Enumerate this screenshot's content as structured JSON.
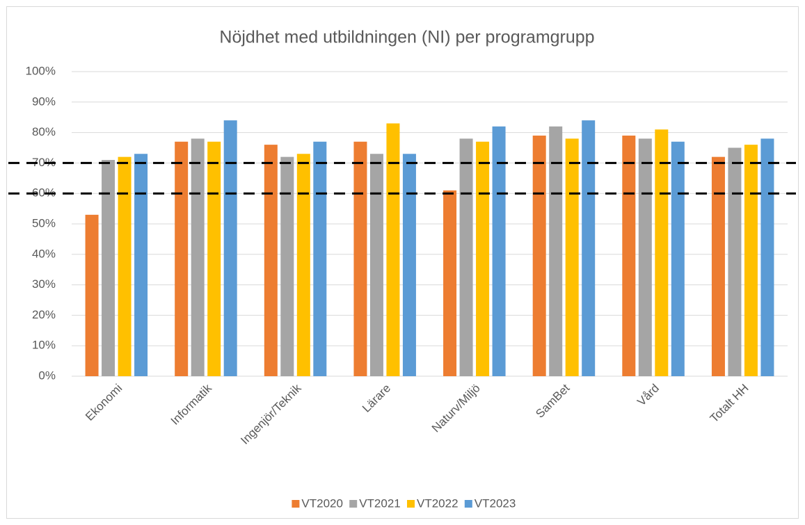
{
  "chart_data": {
    "type": "bar",
    "title": "Nöjdhet med utbildningen (NI) per programgrupp",
    "categories": [
      "Ekonomi",
      "Informatik",
      "Ingenjör/Teknik",
      "Lärare",
      "Naturv/Miljö",
      "SamBet",
      "Vård",
      "Totalt HH"
    ],
    "series": [
      {
        "name": "VT2020",
        "color": "#ed7d31",
        "values": [
          53,
          77,
          76,
          77,
          61,
          79,
          79,
          72
        ]
      },
      {
        "name": "VT2021",
        "color": "#a5a5a5",
        "values": [
          71,
          78,
          72,
          73,
          78,
          82,
          78,
          75
        ]
      },
      {
        "name": "VT2022",
        "color": "#ffc000",
        "values": [
          72,
          77,
          73,
          83,
          77,
          78,
          81,
          76
        ]
      },
      {
        "name": "VT2023",
        "color": "#5b9bd5",
        "values": [
          73,
          84,
          77,
          73,
          82,
          84,
          77,
          78
        ]
      }
    ],
    "ylim": [
      0,
      100
    ],
    "yticks": [
      {
        "value": 0,
        "label": "0%"
      },
      {
        "value": 10,
        "label": "10%"
      },
      {
        "value": 20,
        "label": "20%"
      },
      {
        "value": 30,
        "label": "30%"
      },
      {
        "value": 40,
        "label": "40%"
      },
      {
        "value": 50,
        "label": "50%"
      },
      {
        "value": 60,
        "label": "60%"
      },
      {
        "value": 70,
        "label": "70%"
      },
      {
        "value": 80,
        "label": "80%"
      },
      {
        "value": 90,
        "label": "90%"
      },
      {
        "value": 100,
        "label": "100%"
      }
    ],
    "reference_lines": [
      70,
      60
    ],
    "grid": true,
    "legend": "bottom"
  }
}
